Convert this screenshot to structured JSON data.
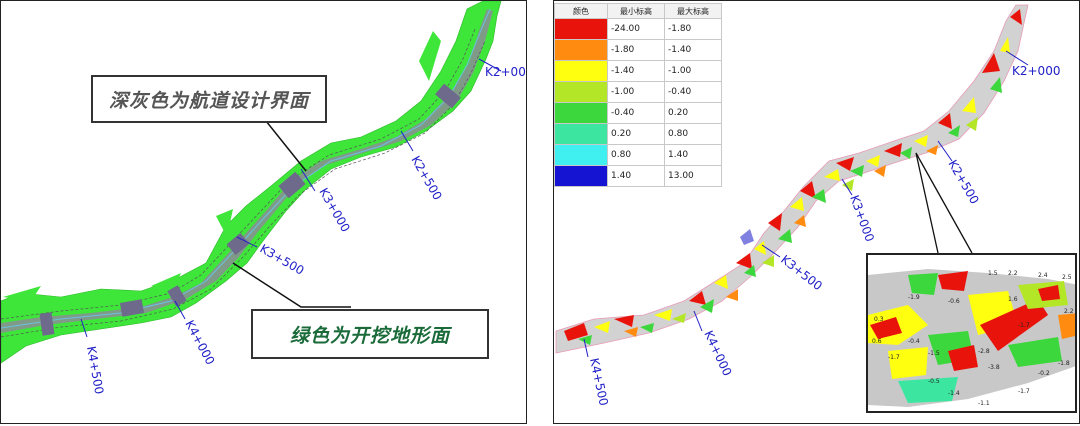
{
  "left": {
    "callout_top": "深灰色为航道设计界面",
    "callout_bottom": "绿色为开挖地形面",
    "colors": {
      "excavation": "#3ee63a",
      "channel": "#8c8c96",
      "chainage": "#2020c8"
    },
    "chainages": [
      "K2+000",
      "K2+500",
      "K3+000",
      "K3+500",
      "K4+000",
      "K4+500"
    ]
  },
  "right": {
    "legend": {
      "headers": [
        "颜色",
        "最小标高",
        "最大标高"
      ],
      "rows": [
        {
          "color": "#e8140c",
          "min": "-24.00",
          "max": "-1.80"
        },
        {
          "color": "#ff8c10",
          "min": "-1.80",
          "max": "-1.40"
        },
        {
          "color": "#ffff10",
          "min": "-1.40",
          "max": "-1.00"
        },
        {
          "color": "#b4e628",
          "min": "-1.00",
          "max": "-0.40"
        },
        {
          "color": "#3cd73c",
          "min": "-0.40",
          "max": "0.20"
        },
        {
          "color": "#3ce6a0",
          "min": "0.20",
          "max": "0.80"
        },
        {
          "color": "#40f0f0",
          "min": "0.80",
          "max": "1.40"
        },
        {
          "color": "#1414d2",
          "min": "1.40",
          "max": "13.00"
        }
      ]
    },
    "chainages": [
      "K2+000",
      "K2+500",
      "K3+000",
      "K3+500",
      "K4+000",
      "K4+500"
    ],
    "inset_labels": [
      "1.5",
      "2.2",
      "2.4",
      "2.5",
      "1.6",
      "2.2",
      "0.3",
      "-1.9",
      "-0.6",
      "-1.7",
      "0.6",
      "-0.4",
      "-1.5",
      "-2.8",
      "-3.8",
      "-0.2",
      "-1.7",
      "-0.5",
      "-1.4",
      "-1.7",
      "-1.8",
      "-1.1"
    ]
  }
}
